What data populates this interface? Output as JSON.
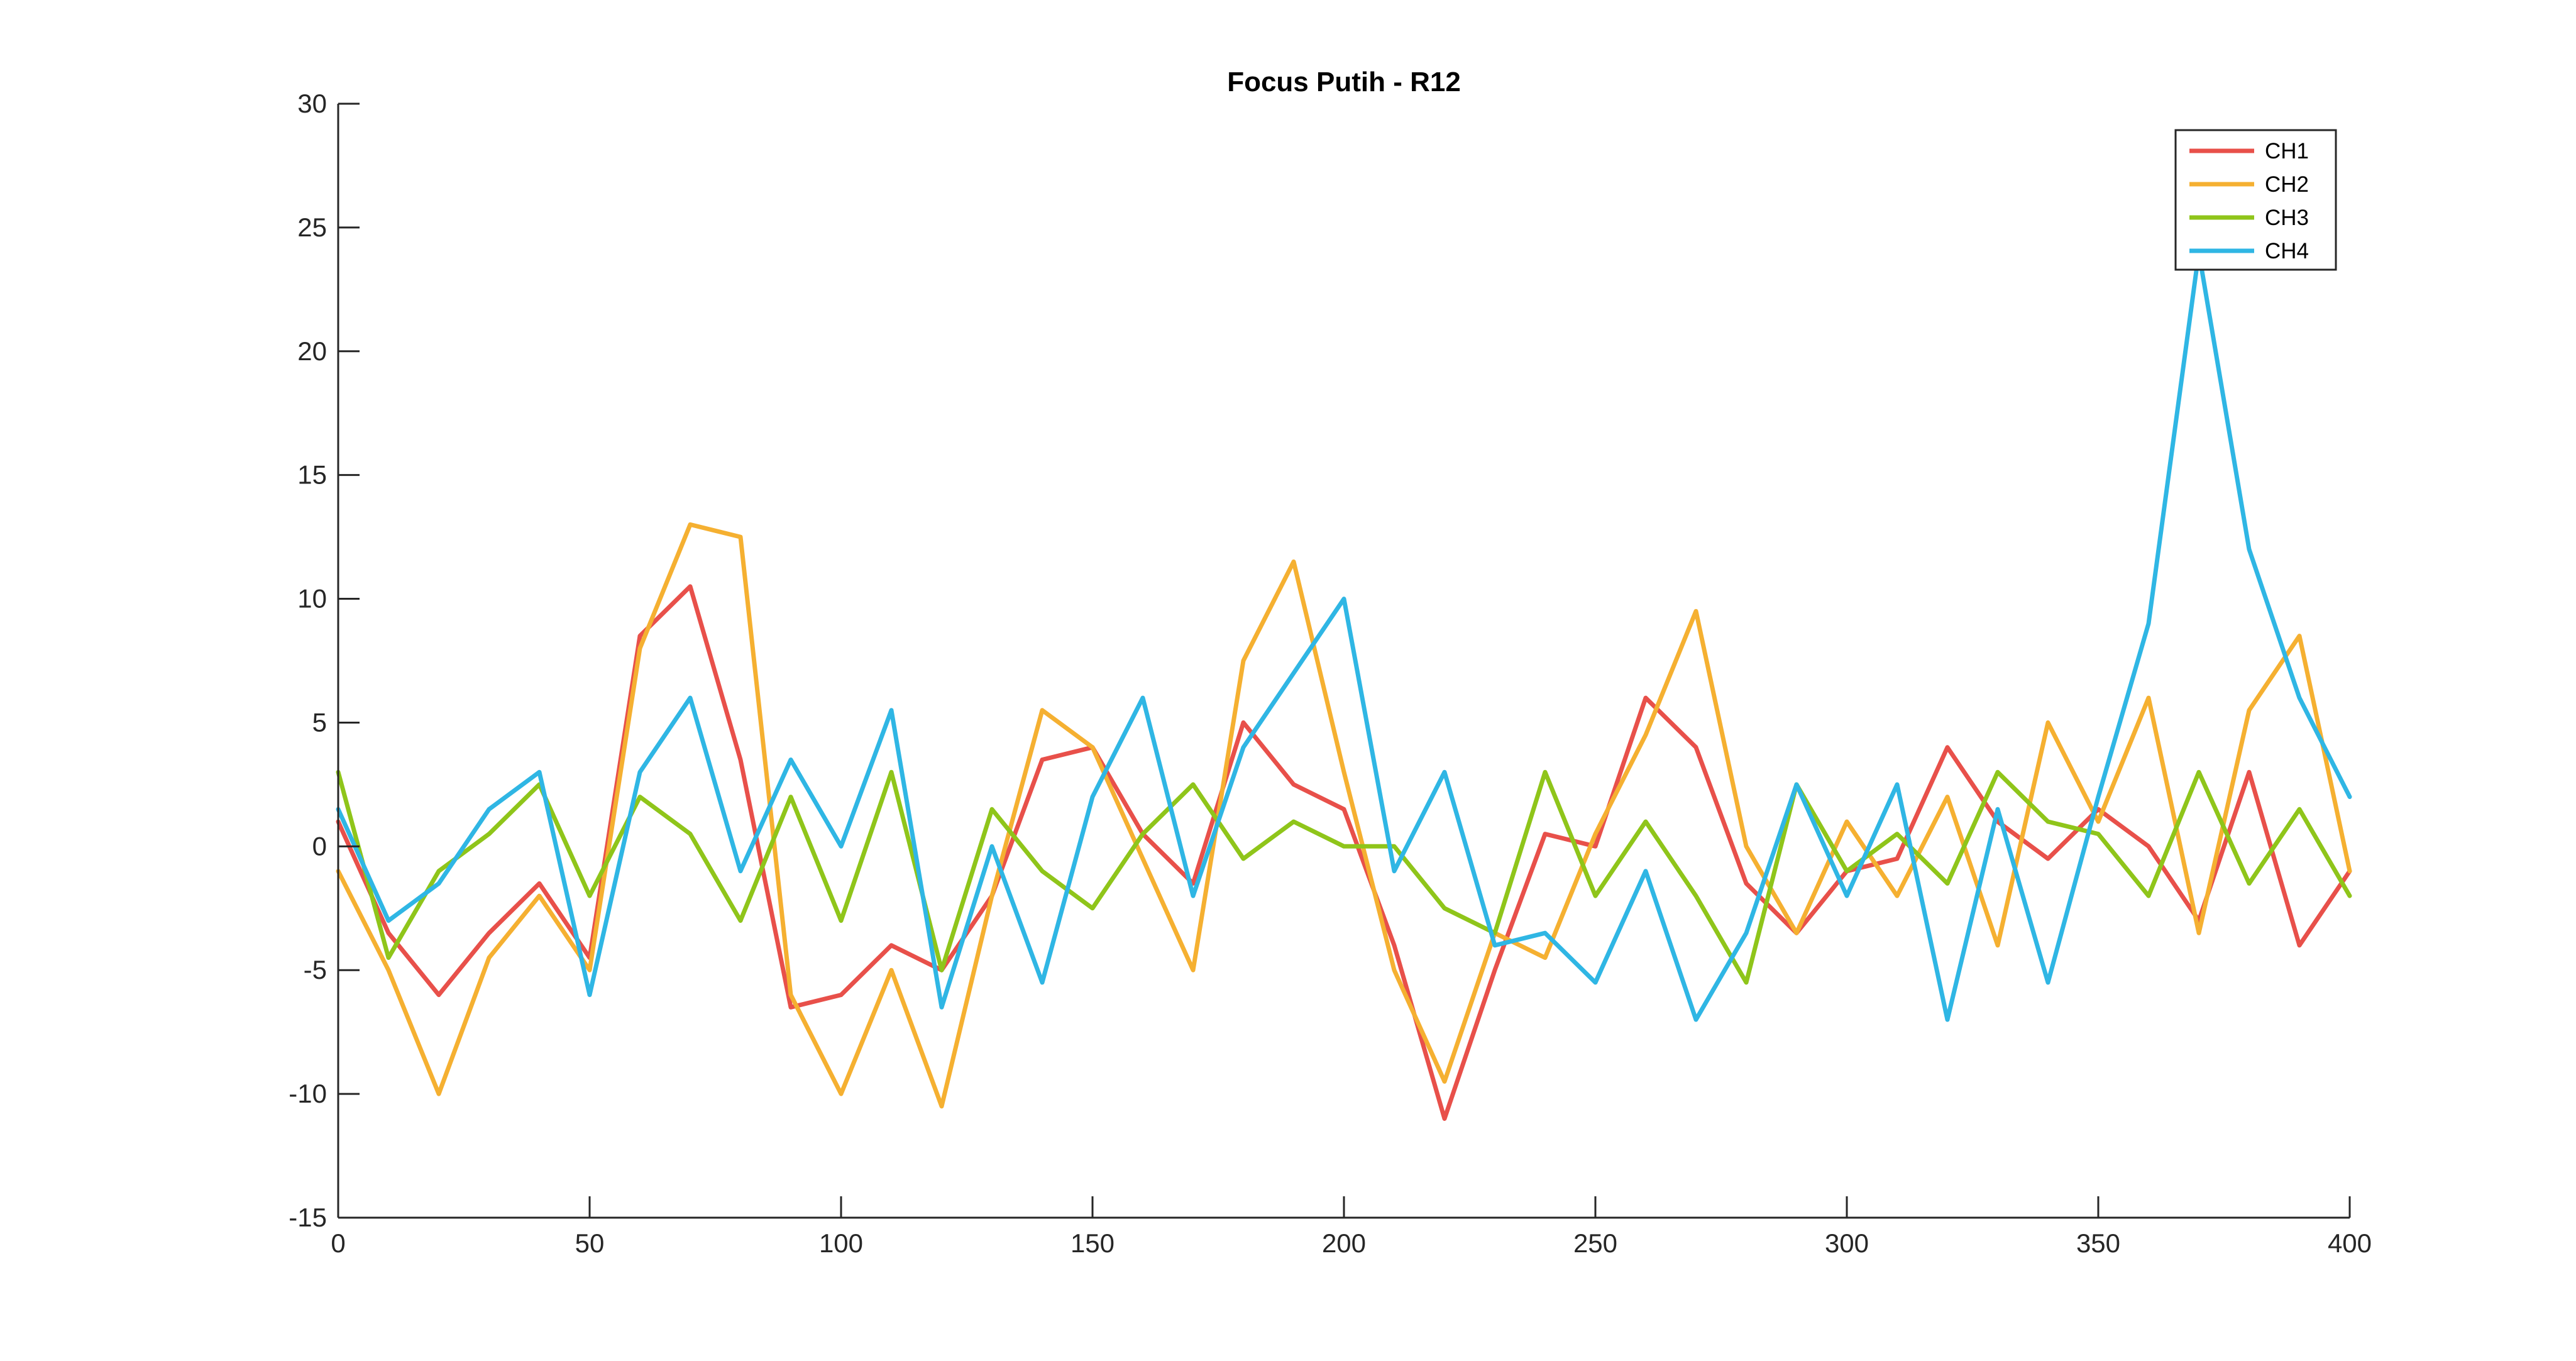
{
  "chart_data": {
    "type": "line",
    "title": "Focus Putih - R12",
    "xlabel": "",
    "ylabel": "",
    "xlim": [
      0,
      400
    ],
    "ylim": [
      -15,
      30
    ],
    "xticks": [
      0,
      50,
      100,
      150,
      200,
      250,
      300,
      350,
      400
    ],
    "yticks": [
      -15,
      -10,
      -5,
      0,
      5,
      10,
      15,
      20,
      25,
      30
    ],
    "grid": false,
    "legend_position": "top-right",
    "x": [
      0,
      10,
      20,
      30,
      40,
      50,
      60,
      70,
      80,
      90,
      100,
      110,
      120,
      130,
      140,
      150,
      160,
      170,
      180,
      190,
      200,
      210,
      220,
      230,
      240,
      250,
      260,
      270,
      280,
      290,
      300,
      310,
      320,
      330,
      340,
      350,
      360,
      370,
      380,
      390,
      400
    ],
    "series": [
      {
        "name": "CH1",
        "color": "#e8504a",
        "values": [
          1.0,
          -3.5,
          -6.0,
          -3.5,
          -1.5,
          -4.5,
          8.5,
          10.5,
          3.5,
          -6.5,
          -6.0,
          -4.0,
          -5.0,
          -2.0,
          3.5,
          4.0,
          0.5,
          -1.5,
          5.0,
          2.5,
          1.5,
          -4.0,
          -11.0,
          -5.0,
          0.5,
          0.0,
          6.0,
          4.0,
          -1.5,
          -3.5,
          -1.0,
          -0.5,
          4.0,
          1.0,
          -0.5,
          1.5,
          0.0,
          -3.0,
          3.0,
          -4.0,
          -1.0
        ]
      },
      {
        "name": "CH2",
        "color": "#f5b031",
        "values": [
          -1.0,
          -5.0,
          -10.0,
          -4.5,
          -2.0,
          -5.0,
          8.0,
          13.0,
          12.5,
          -6.0,
          -10.0,
          -5.0,
          -10.5,
          -2.0,
          5.5,
          4.0,
          -0.5,
          -5.0,
          7.5,
          11.5,
          3.0,
          -5.0,
          -9.5,
          -3.5,
          -4.5,
          0.5,
          4.5,
          9.5,
          0.0,
          -3.5,
          1.0,
          -2.0,
          2.0,
          -4.0,
          5.0,
          1.0,
          6.0,
          -3.5,
          5.5,
          8.5,
          -1.0
        ]
      },
      {
        "name": "CH3",
        "color": "#8fc51a",
        "values": [
          3.0,
          -4.5,
          -1.0,
          0.5,
          2.5,
          -2.0,
          2.0,
          0.5,
          -3.0,
          2.0,
          -3.0,
          3.0,
          -5.0,
          1.5,
          -1.0,
          -2.5,
          0.5,
          2.5,
          -0.5,
          1.0,
          0.0,
          0.0,
          -2.5,
          -3.5,
          3.0,
          -2.0,
          1.0,
          -2.0,
          -5.5,
          2.5,
          -1.0,
          0.5,
          -1.5,
          3.0,
          1.0,
          0.5,
          -2.0,
          3.0,
          -1.5,
          1.5,
          -2.0
        ]
      },
      {
        "name": "CH4",
        "color": "#2fb6e4",
        "values": [
          1.5,
          -3.0,
          -1.5,
          1.5,
          3.0,
          -6.0,
          3.0,
          6.0,
          -1.0,
          3.5,
          0.0,
          5.5,
          -6.5,
          0.0,
          -5.5,
          2.0,
          6.0,
          -2.0,
          4.0,
          7.0,
          10.0,
          -1.0,
          3.0,
          -4.0,
          -3.5,
          -5.5,
          -1.0,
          -7.0,
          -3.5,
          2.5,
          -2.0,
          2.5,
          -7.0,
          1.5,
          -5.5,
          2.0,
          9.0,
          24.0,
          12.0,
          6.0,
          2.0
        ]
      }
    ]
  }
}
